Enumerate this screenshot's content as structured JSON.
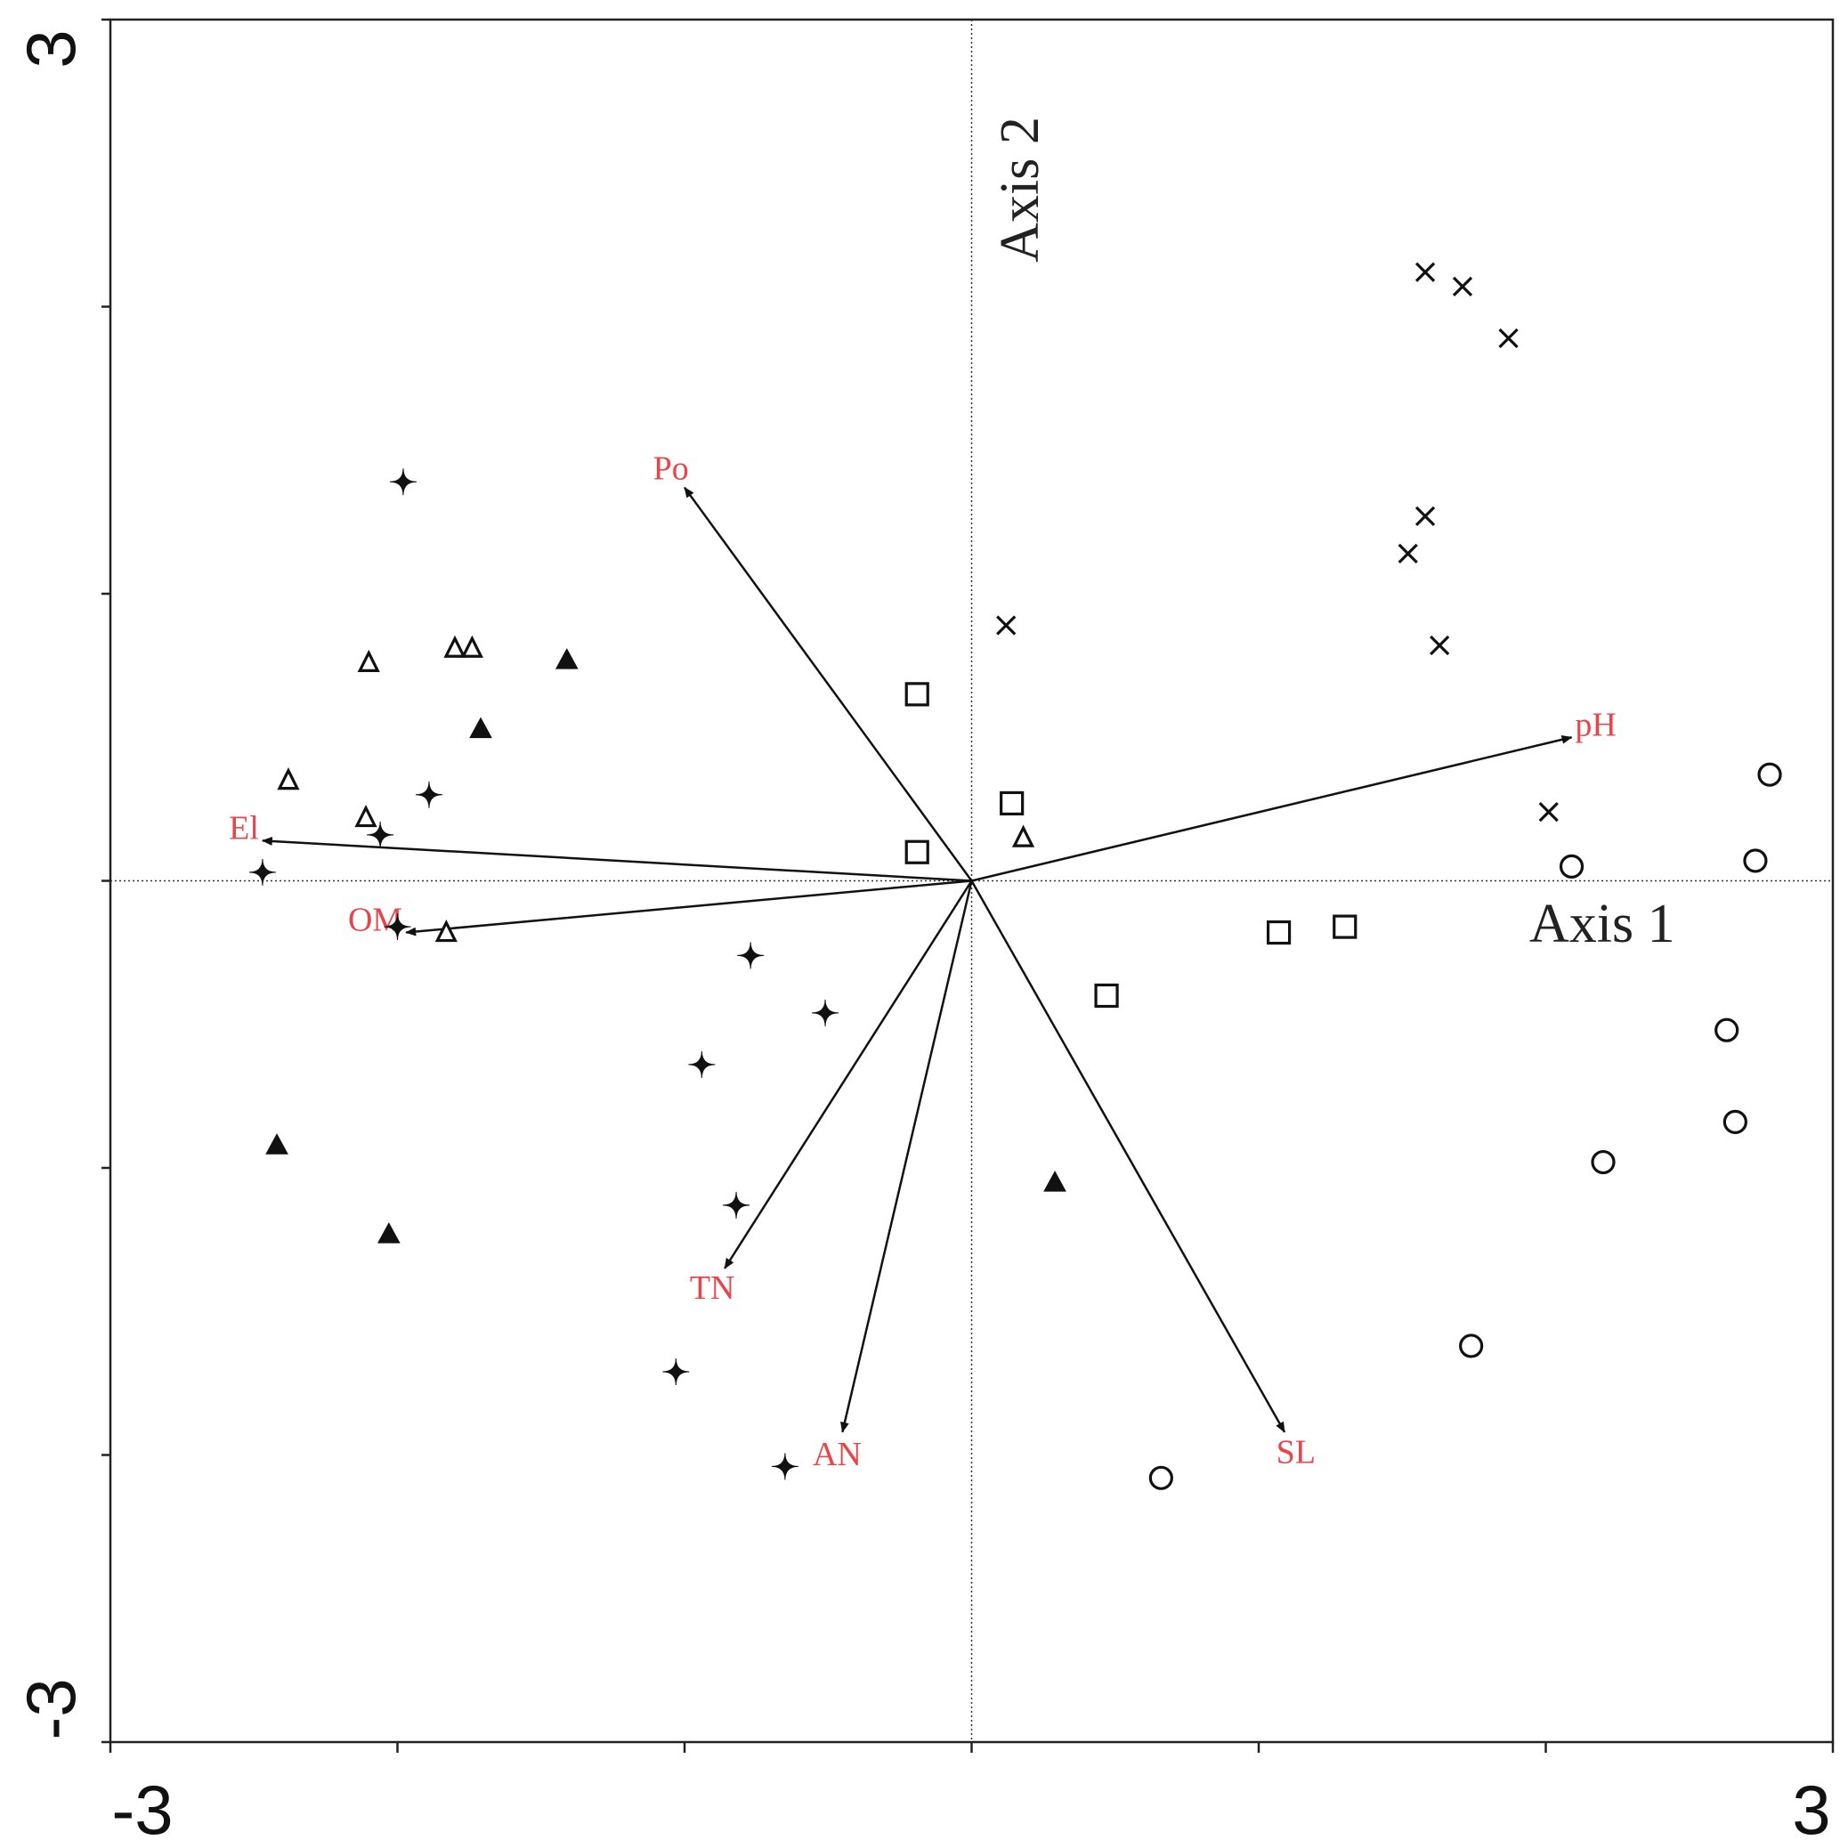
{
  "chart_data": {
    "type": "scatter",
    "subtype": "ordination biplot",
    "title": "",
    "xlabel": "Axis 1",
    "ylabel": "Axis 2",
    "xlim": [
      -3,
      3
    ],
    "ylim": [
      -3,
      3
    ],
    "x_tick_labels": [
      "-3",
      "3"
    ],
    "y_tick_labels": [
      "3",
      "-3"
    ],
    "x_ticks": [
      -3,
      -2,
      -1,
      0,
      1,
      2,
      3
    ],
    "y_ticks": [
      -3,
      -2,
      -1,
      0,
      1,
      2,
      3
    ],
    "zero_lines": "dotted",
    "grid": false,
    "legend": "none",
    "vector_label_color": "#e8454a",
    "vectors": [
      {
        "label": "Po",
        "x": -1.0,
        "y": 1.37
      },
      {
        "label": "pH",
        "x": 2.09,
        "y": 0.5
      },
      {
        "label": "El",
        "x": -2.47,
        "y": 0.14
      },
      {
        "label": "OM",
        "x": -1.97,
        "y": -0.18
      },
      {
        "label": "TN",
        "x": -0.86,
        "y": -1.35
      },
      {
        "label": "AN",
        "x": -0.45,
        "y": -1.92
      },
      {
        "label": "SL",
        "x": 1.09,
        "y": -1.92
      }
    ],
    "groups": [
      {
        "marker": "x",
        "points": [
          [
            1.58,
            2.12
          ],
          [
            1.71,
            2.07
          ],
          [
            1.87,
            1.89
          ],
          [
            1.58,
            1.27
          ],
          [
            1.52,
            1.14
          ],
          [
            1.63,
            0.82
          ],
          [
            0.12,
            0.89
          ],
          [
            2.01,
            0.24
          ]
        ]
      },
      {
        "marker": "circle-open",
        "points": [
          [
            2.78,
            0.37
          ],
          [
            2.73,
            0.07
          ],
          [
            2.09,
            0.05
          ],
          [
            2.63,
            -0.52
          ],
          [
            2.66,
            -0.84
          ],
          [
            2.2,
            -0.98
          ],
          [
            1.74,
            -1.62
          ],
          [
            0.66,
            -2.08
          ]
        ]
      },
      {
        "marker": "square-open",
        "points": [
          [
            -0.19,
            0.65
          ],
          [
            0.14,
            0.27
          ],
          [
            -0.19,
            0.1
          ],
          [
            1.07,
            -0.18
          ],
          [
            1.3,
            -0.16
          ],
          [
            0.47,
            -0.4
          ]
        ]
      },
      {
        "marker": "triangle-open",
        "points": [
          [
            -2.1,
            0.76
          ],
          [
            -1.8,
            0.81
          ],
          [
            -1.74,
            0.81
          ],
          [
            -2.38,
            0.35
          ],
          [
            -2.11,
            0.22
          ],
          [
            -1.83,
            -0.18
          ],
          [
            0.18,
            0.15
          ]
        ]
      },
      {
        "marker": "triangle-filled",
        "points": [
          [
            -1.41,
            0.77
          ],
          [
            -1.71,
            0.53
          ],
          [
            -2.42,
            -0.92
          ],
          [
            -2.03,
            -1.23
          ],
          [
            0.29,
            -1.05
          ]
        ]
      },
      {
        "marker": "star4-filled",
        "points": [
          [
            -1.98,
            1.39
          ],
          [
            -1.89,
            0.3
          ],
          [
            -2.06,
            0.16
          ],
          [
            -2.47,
            0.03
          ],
          [
            -2.0,
            -0.16
          ],
          [
            -0.77,
            -0.26
          ],
          [
            -0.51,
            -0.46
          ],
          [
            -0.94,
            -0.64
          ],
          [
            -0.82,
            -1.13
          ],
          [
            -1.03,
            -1.71
          ],
          [
            -0.65,
            -2.04
          ]
        ]
      }
    ]
  }
}
